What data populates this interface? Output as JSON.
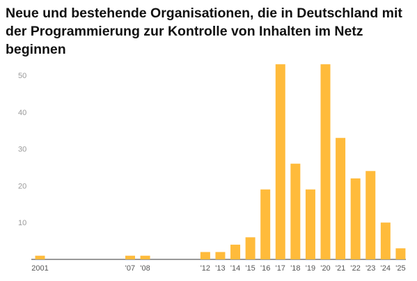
{
  "chart_data": {
    "type": "bar",
    "title": "Neue und bestehende Organisationen, die in Deutschland mit der Programmierung zur Kontrolle von Inhalten im Netz beginnen",
    "xlabel": "",
    "ylabel": "",
    "x_range": [
      2001,
      2025
    ],
    "ylim": [
      0,
      55
    ],
    "yticks": [
      10,
      20,
      30,
      40,
      50
    ],
    "grid": false,
    "legend": "none",
    "bar_color": "#FFBB3B",
    "years": [
      2001,
      2007,
      2008,
      2012,
      2013,
      2014,
      2015,
      2016,
      2017,
      2018,
      2019,
      2020,
      2021,
      2022,
      2023,
      2024,
      2025
    ],
    "values": [
      1,
      1,
      1,
      2,
      2,
      4,
      6,
      19,
      53,
      26,
      19,
      53,
      33,
      22,
      24,
      10,
      3
    ],
    "categories": [
      "2001",
      "'07",
      "'08",
      "'12",
      "'13",
      "'14",
      "'15",
      "'16",
      "'17",
      "'18",
      "'19",
      "'20",
      "'21",
      "'22",
      "'23",
      "'24",
      "'25"
    ]
  }
}
